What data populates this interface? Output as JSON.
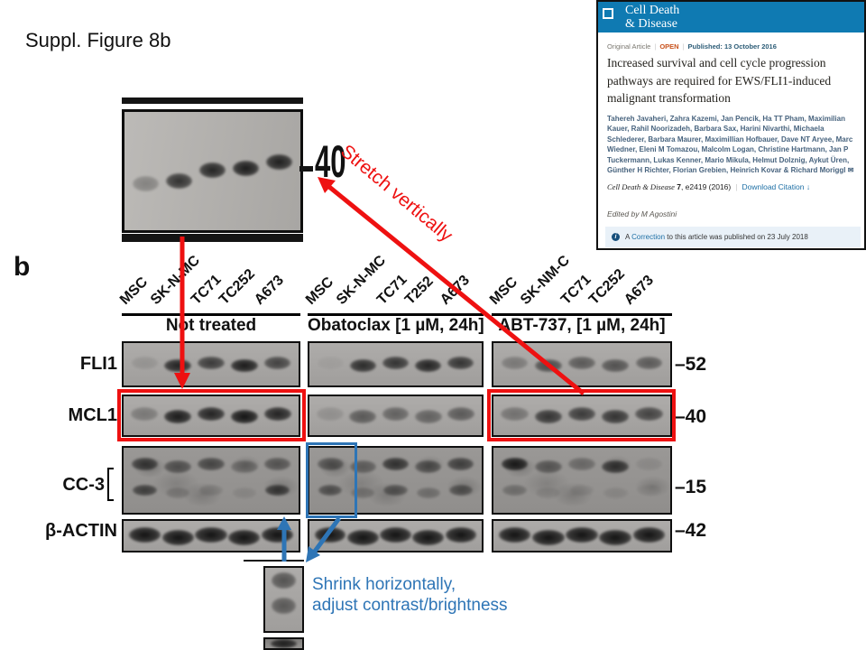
{
  "slide": {
    "title": "Suppl. Figure 8b"
  },
  "blot": {
    "panel_letter": "b",
    "treatments": [
      "Not treated",
      "Obatoclax [1 µM, 24h]",
      "ABT-737, [1 µM, 24h]"
    ],
    "lanes": [
      [
        "MSC",
        "SK-N-MC",
        "TC71",
        "TC252",
        "A673"
      ],
      [
        "MSC",
        "SK-N-MC",
        "TC71",
        "T252",
        "A673"
      ],
      [
        "MSC",
        "SK-NM-C",
        "TC71",
        "TC252",
        "A673"
      ]
    ],
    "row_labels": [
      "FLI1",
      "MCL1",
      "CC-3",
      "β-ACTIN"
    ],
    "mw_labels": [
      "–52",
      "–40",
      "–15",
      "–42"
    ],
    "zoom_strip_mw": "40"
  },
  "annotations": {
    "stretch": "Stretch vertically",
    "shrink_line1": "Shrink horizontally,",
    "shrink_line2": "adjust contrast/brightness"
  },
  "article": {
    "journal_line1": "Cell Death",
    "journal_line2": "& Disease",
    "type_label": "Original Article",
    "open_label": "OPEN",
    "published_label": "Published: 13 October 2016",
    "separator": "|",
    "title": "Increased survival and cell cycle progression pathways are required for EWS/FLI1-induced malignant transformation",
    "authors": "Tahereh Javaheri, Zahra Kazemi, Jan Pencik, Ha TT Pham, Maximilian Kauer, Rahil Noorizadeh, Barbara Sax, Harini Nivarthi, Michaela Schlederer, Barbara Maurer, Maximillian Hofbauer, Dave NT Aryee, Marc Wiedner, Eleni M Tomazou, Malcolm Logan, Christine Hartmann, Jan P Tuckermann, Lukas Kenner, Mario Mikula, Helmut Dolznig, Aykut Üren, Günther H Richter, Florian Grebien, Heinrich Kovar & Richard Moriggl",
    "citation_journal": "Cell Death & Disease",
    "citation_volume": "7",
    "citation_rest": ", e2419 (2016)",
    "download_label": "Download Citation",
    "edited_by": "Edited by M Agostini",
    "correction_prefix": "A ",
    "correction_link": "Correction",
    "correction_suffix": " to this article was published on 23 July 2018"
  },
  "icons": {
    "info": "i",
    "envelope": "✉",
    "download": "↓"
  },
  "colors": {
    "annotation_red": "#ee1111",
    "annotation_blue": "#2e75b6",
    "journal_blue": "#0f7ab2",
    "open_orange": "#c8511b",
    "link_blue": "#1d6fa5",
    "correction_bg": "#e9f1f8"
  },
  "bands": {
    "zoom_strip": {
      "intensities": [
        0.3,
        0.78,
        0.85,
        0.9,
        0.88
      ],
      "y": [
        72,
        66,
        57,
        52,
        48
      ]
    },
    "fli1": [
      [
        0.12,
        0.85,
        0.7,
        0.9,
        0.65
      ],
      [
        0.05,
        0.8,
        0.75,
        0.85,
        0.75
      ],
      [
        0.3,
        0.6,
        0.5,
        0.55,
        0.5
      ]
    ],
    "mcl1": [
      [
        0.3,
        0.9,
        0.85,
        0.95,
        0.85
      ],
      [
        0.15,
        0.5,
        0.45,
        0.45,
        0.5
      ],
      [
        0.35,
        0.75,
        0.7,
        0.75,
        0.65
      ]
    ],
    "cc3_upper": [
      [
        0.7,
        0.55,
        0.6,
        0.35,
        0.5
      ],
      [
        0.5,
        0.45,
        0.75,
        0.55,
        0.65
      ],
      [
        0.9,
        0.5,
        0.35,
        0.75,
        0.1
      ]
    ],
    "cc3_lower": [
      [
        0.65,
        0.2,
        0.15,
        0.1,
        0.7
      ],
      [
        0.55,
        0.25,
        0.5,
        0.3,
        0.5
      ],
      [
        0.3,
        0.1,
        0.1,
        0.1,
        0.05
      ]
    ],
    "actin": [
      [
        0.95,
        0.95,
        0.95,
        0.95,
        0.95
      ],
      [
        0.95,
        0.95,
        0.95,
        0.95,
        0.95
      ],
      [
        0.95,
        0.95,
        0.95,
        0.95,
        0.95
      ]
    ],
    "bottom_crop": [
      0.55,
      0.5
    ]
  }
}
